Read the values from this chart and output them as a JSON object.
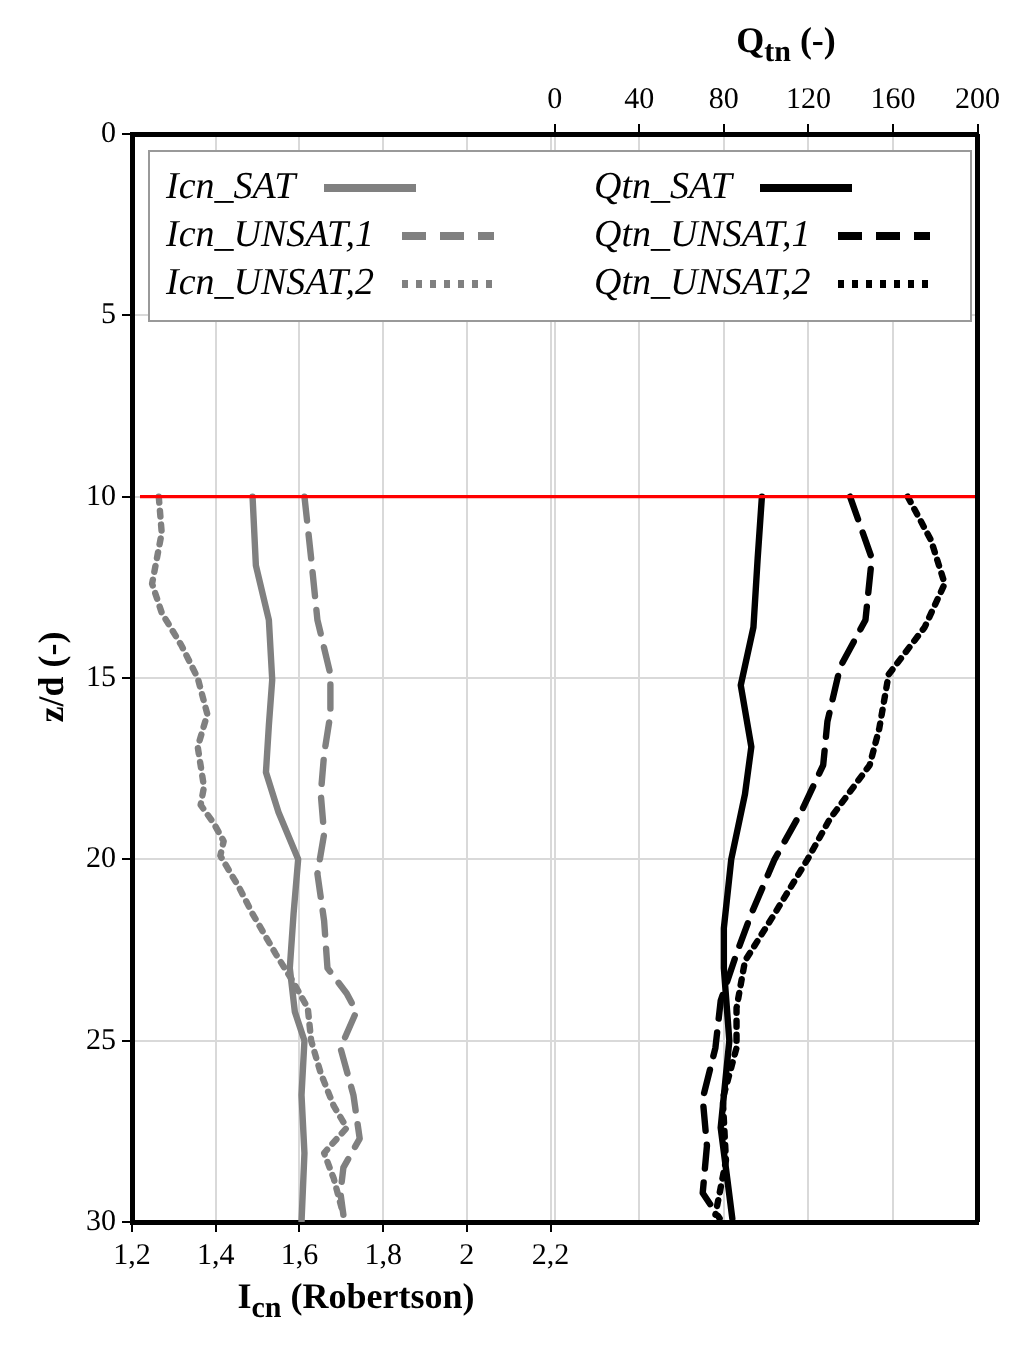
{
  "chart_data": {
    "type": "line",
    "xlabel": "I$_{cn}$ (Robertson)",
    "x2label": "Q$_{tn}$ (-)",
    "ylabel": "z/d (-)",
    "xlim": [
      1.2,
      3.22
    ],
    "xticks": [
      {
        "value": 1.2,
        "label": "1,2"
      },
      {
        "value": 1.4,
        "label": "1,4"
      },
      {
        "value": 1.6,
        "label": "1,6"
      },
      {
        "value": 1.8,
        "label": "1,8"
      },
      2,
      {
        "value": 2.2,
        "label": "2,2"
      }
    ],
    "x2lim": [
      -200,
      200
    ],
    "x2ticks": [
      0,
      40,
      80,
      120,
      160,
      200
    ],
    "ylim": [
      30,
      0
    ],
    "yticks": [
      0,
      5,
      10,
      15,
      20,
      25,
      30
    ],
    "grid": true,
    "legend": "top",
    "marker": "none",
    "ref_lines": [
      {
        "axis": "y",
        "value": 10,
        "color": "#ff0000",
        "line_style": "solid"
      }
    ],
    "series": [
      {
        "name": "Icn_SAT",
        "color": "#808080",
        "line_style": "solid",
        "x": [
          1.488,
          1.496,
          1.527,
          1.535,
          1.527,
          1.52,
          1.55,
          1.597,
          1.586,
          1.577,
          1.589,
          1.612,
          1.605,
          1.612,
          1.605
        ],
        "values": [
          10,
          11.9,
          13.4,
          15.05,
          16.3,
          17.6,
          18.7,
          20,
          21.5,
          23,
          24.2,
          25,
          26.5,
          28.1,
          30
        ]
      },
      {
        "name": "Icn_UNSAT,1",
        "color": "#808080",
        "line_style": "dashed",
        "x": [
          1.612,
          1.628,
          1.643,
          1.674,
          1.674,
          1.659,
          1.651,
          1.659,
          1.643,
          1.659,
          1.667,
          1.713,
          1.736,
          1.698,
          1.729,
          1.744,
          1.705,
          1.698,
          1.705
        ],
        "values": [
          10,
          11.7,
          13.4,
          14.9,
          16,
          17.1,
          18.2,
          19.3,
          20.4,
          21.7,
          23,
          23.7,
          24.2,
          25.2,
          26.5,
          27.7,
          28.5,
          29.2,
          29.8
        ]
      },
      {
        "name": "Icn_UNSAT,2",
        "color": "#808080",
        "line_style": "dotted",
        "x": [
          1.264,
          1.271,
          1.248,
          1.271,
          1.318,
          1.357,
          1.38,
          1.357,
          1.372,
          1.364,
          1.395,
          1.419,
          1.411,
          1.457,
          1.488,
          1.543,
          1.581,
          1.62,
          1.628,
          1.651,
          1.682,
          1.713,
          1.659,
          1.682,
          1.705
        ],
        "values": [
          10,
          11,
          12.4,
          13.2,
          14.1,
          15,
          16,
          16.9,
          18,
          18.5,
          19,
          19.5,
          19.9,
          20.8,
          21.5,
          22.6,
          23.3,
          24.1,
          25,
          25.9,
          26.8,
          27.4,
          28.1,
          28.8,
          29.8
        ]
      },
      {
        "name": "Qtn_SAT",
        "color": "#000000",
        "line_style": "solid",
        "axis": "x2",
        "x": [
          98,
          96,
          94,
          88,
          93,
          90,
          83.5,
          80,
          80,
          82.6,
          78.5,
          81.6,
          84
        ],
        "values": [
          10,
          11.7,
          13.6,
          15.2,
          16.9,
          18.2,
          20,
          21.9,
          23,
          25,
          27.4,
          28.8,
          29.9
        ]
      },
      {
        "name": "Qtn_UNSAT,1",
        "color": "#000000",
        "line_style": "dashed",
        "axis": "x2",
        "x": [
          139.7,
          150,
          147,
          135,
          129,
          127,
          116.5,
          104,
          93,
          86,
          78.5,
          76,
          70,
          72,
          70,
          78
        ],
        "values": [
          10,
          11.7,
          13.4,
          14.7,
          16.2,
          17.4,
          18.7,
          20,
          21.5,
          22.6,
          23.9,
          25.2,
          26.6,
          27.9,
          29.2,
          29.9
        ]
      },
      {
        "name": "Qtn_UNSAT,2",
        "color": "#000000",
        "line_style": "dotted",
        "axis": "x2",
        "x": [
          167,
          178,
          184.5,
          175,
          158,
          153.5,
          149,
          130,
          119.6,
          104,
          90,
          86,
          86,
          79.5,
          81,
          76
        ],
        "values": [
          10,
          11.2,
          12.4,
          13.6,
          14.9,
          16.4,
          17.4,
          18.9,
          20,
          21.5,
          22.8,
          24.1,
          25.2,
          26.6,
          28.3,
          29.8
        ]
      }
    ]
  }
}
